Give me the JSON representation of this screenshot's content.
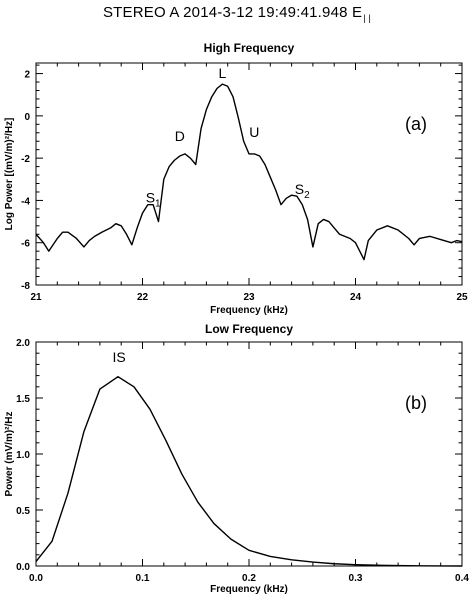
{
  "figure_title": {
    "text": "STEREO A 2014-3-12   19:49:41.948  E",
    "subscript": "| |"
  },
  "chart_data": [
    {
      "type": "line",
      "title": "High Frequency",
      "xlabel": "Frequency (kHz)",
      "ylabel": "Log Power [(mV/m)²/Hz]",
      "xlim": [
        21,
        25
      ],
      "ylim": [
        -8,
        2.5
      ],
      "xticks": [
        21,
        22,
        23,
        24,
        25
      ],
      "yticks": [
        -8,
        -6,
        -4,
        -2,
        0,
        2
      ],
      "panel_label": "(a)",
      "grid": false,
      "annotations": [
        {
          "id": "S1",
          "text": "S",
          "subscript": "1",
          "x": 22.1,
          "y": -4.1
        },
        {
          "id": "D",
          "text": "D",
          "x": 22.35,
          "y": -1.2
        },
        {
          "id": "L",
          "text": "L",
          "x": 22.75,
          "y": 1.8
        },
        {
          "id": "U",
          "text": "U",
          "x": 23.05,
          "y": -1.0
        },
        {
          "id": "S2",
          "text": "S",
          "subscript": "2",
          "x": 23.5,
          "y": -3.7
        }
      ],
      "series": [
        {
          "x": [
            21.0,
            21.07,
            21.12,
            21.2,
            21.25,
            21.3,
            21.38,
            21.45,
            21.5,
            21.55,
            21.62,
            21.7,
            21.75,
            21.8,
            21.85,
            21.9,
            21.95,
            22.0,
            22.05,
            22.1,
            22.15,
            22.2,
            22.25,
            22.3,
            22.35,
            22.4,
            22.45,
            22.5,
            22.55,
            22.6,
            22.65,
            22.7,
            22.75,
            22.8,
            22.85,
            22.9,
            22.95,
            23.0,
            23.05,
            23.1,
            23.15,
            23.2,
            23.25,
            23.3,
            23.35,
            23.4,
            23.45,
            23.5,
            23.55,
            23.6,
            23.65,
            23.7,
            23.75,
            23.8,
            23.85,
            23.9,
            23.95,
            24.0,
            24.05,
            24.08,
            24.12,
            24.2,
            24.3,
            24.4,
            24.5,
            24.55,
            24.6,
            24.7,
            24.8,
            24.9,
            24.95,
            25.0
          ],
          "y": [
            -5.6,
            -6.0,
            -6.4,
            -5.8,
            -5.5,
            -5.5,
            -5.8,
            -6.2,
            -5.9,
            -5.7,
            -5.5,
            -5.3,
            -5.1,
            -5.2,
            -5.6,
            -6.1,
            -5.3,
            -4.6,
            -4.2,
            -4.2,
            -5.0,
            -3.0,
            -2.4,
            -2.1,
            -1.9,
            -1.8,
            -2.0,
            -2.3,
            -0.6,
            0.3,
            0.9,
            1.3,
            1.5,
            1.4,
            0.9,
            -0.1,
            -1.2,
            -1.8,
            -1.8,
            -1.9,
            -2.3,
            -2.9,
            -3.5,
            -4.2,
            -3.9,
            -3.75,
            -3.8,
            -4.2,
            -4.9,
            -6.2,
            -5.1,
            -4.9,
            -5.0,
            -5.3,
            -5.6,
            -5.7,
            -5.8,
            -6.0,
            -6.5,
            -6.8,
            -5.9,
            -5.4,
            -5.2,
            -5.4,
            -5.8,
            -6.1,
            -5.8,
            -5.7,
            -5.85,
            -6.0,
            -5.9,
            -5.95
          ]
        }
      ]
    },
    {
      "type": "line",
      "title": "Low Frequency",
      "xlabel": "Frequency (kHz)",
      "ylabel": "Power (mV/m)²/Hz",
      "xlim": [
        0.0,
        0.4
      ],
      "ylim": [
        0.0,
        2.0
      ],
      "xticks": [
        0.0,
        0.1,
        0.2,
        0.3,
        0.4
      ],
      "xticklabels": [
        "0.0",
        "0.1",
        "0.2",
        "0.3",
        "0.4"
      ],
      "yticks": [
        0.0,
        0.5,
        1.0,
        1.5,
        2.0
      ],
      "yticklabels": [
        "0.0",
        "0.5",
        "1.0",
        "1.5",
        "2.0"
      ],
      "panel_label": "(b)",
      "grid": false,
      "annotations": [
        {
          "id": "IS",
          "text": "IS",
          "x": 0.078,
          "y": 1.82
        }
      ],
      "series": [
        {
          "x": [
            0.0,
            0.015,
            0.03,
            0.045,
            0.06,
            0.077,
            0.092,
            0.107,
            0.122,
            0.137,
            0.152,
            0.167,
            0.183,
            0.2,
            0.22,
            0.24,
            0.26,
            0.28,
            0.3,
            0.32,
            0.34,
            0.36,
            0.38,
            0.4
          ],
          "y": [
            0.04,
            0.22,
            0.65,
            1.2,
            1.58,
            1.69,
            1.6,
            1.4,
            1.12,
            0.82,
            0.57,
            0.38,
            0.24,
            0.14,
            0.085,
            0.055,
            0.035,
            0.02,
            0.012,
            0.007,
            0.004,
            0.002,
            0.001,
            0.0
          ]
        }
      ]
    }
  ]
}
